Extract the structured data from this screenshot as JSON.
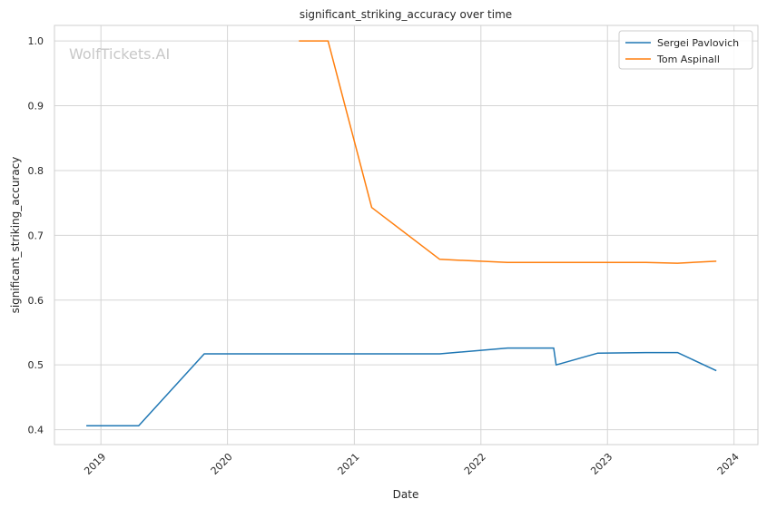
{
  "chart_data": {
    "type": "line",
    "title": "significant_striking_accuracy over time",
    "xlabel": "Date",
    "ylabel": "significant_striking_accuracy",
    "watermark": "WolfTickets.AI",
    "x_ticks": [
      "2019",
      "2020",
      "2021",
      "2022",
      "2023",
      "2024"
    ],
    "y_ticks": [
      "0.4",
      "0.5",
      "0.6",
      "0.7",
      "0.8",
      "0.9",
      "1.0"
    ],
    "xlim": [
      "2018-08-20",
      "2024-03-10"
    ],
    "ylim": [
      0.377,
      1.024
    ],
    "grid": true,
    "legend_position": "top-right",
    "series": [
      {
        "name": "Sergei Pavlovich",
        "color": "#1f77b4",
        "points": [
          [
            "2018-11-20",
            0.406
          ],
          [
            "2019-04-20",
            0.406
          ],
          [
            "2019-10-26",
            0.517
          ],
          [
            "2021-09-04",
            0.517
          ],
          [
            "2022-03-19",
            0.526
          ],
          [
            "2022-07-30",
            0.526
          ],
          [
            "2022-08-06",
            0.5
          ],
          [
            "2022-12-03",
            0.518
          ],
          [
            "2023-04-22",
            0.519
          ],
          [
            "2023-07-22",
            0.519
          ],
          [
            "2023-11-11",
            0.491
          ]
        ]
      },
      {
        "name": "Tom Aspinall",
        "color": "#ff7f0e",
        "points": [
          [
            "2020-07-25",
            1.0
          ],
          [
            "2020-10-17",
            1.0
          ],
          [
            "2021-02-20",
            0.743
          ],
          [
            "2021-09-04",
            0.663
          ],
          [
            "2022-03-19",
            0.658
          ],
          [
            "2022-07-23",
            0.658
          ],
          [
            "2023-04-22",
            0.658
          ],
          [
            "2023-07-22",
            0.657
          ],
          [
            "2023-11-11",
            0.66
          ]
        ]
      }
    ]
  }
}
